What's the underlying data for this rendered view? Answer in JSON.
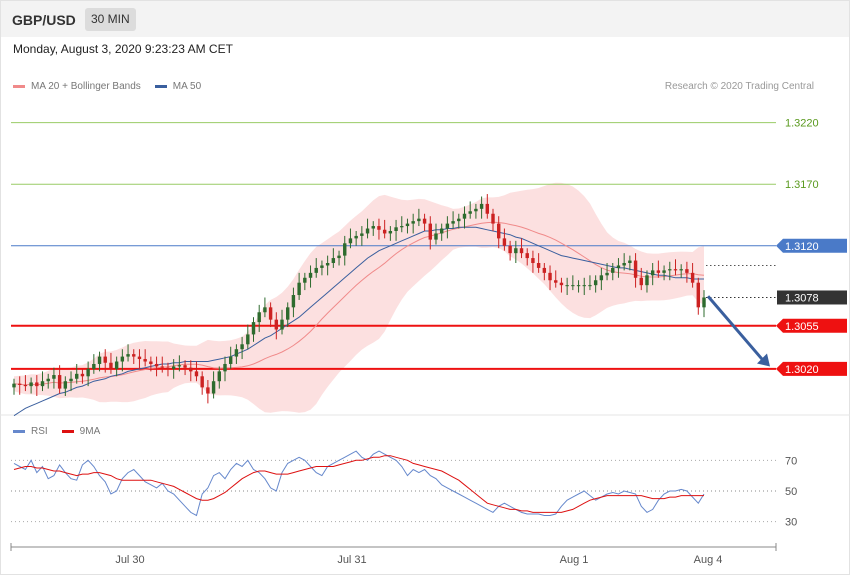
{
  "header": {
    "symbol": "GBP/USD",
    "timeframe": "30 MIN",
    "datetime": "Monday, August 3, 2020 9:23:23 AM CET"
  },
  "legend": {
    "items": [
      {
        "label": "MA 20 + Bollinger Bands",
        "color": "#f08a8a"
      },
      {
        "label": "MA 50",
        "color": "#3a5f9e"
      }
    ],
    "credit": "Research © 2020 Trading Central"
  },
  "rsi_legend": {
    "items": [
      {
        "label": "RSI",
        "color": "#6688cc"
      },
      {
        "label": "9MA",
        "color": "#dd1111"
      }
    ]
  },
  "colors": {
    "up": "#2e6b2e",
    "down": "#cc2222",
    "resistance_green": "#99cc66",
    "pivot_blue": "#4a7ac8",
    "support_red": "#ee1111",
    "bb_fill": "#fbd6d6",
    "ma20": "#f08a8a",
    "ma50": "#3a5f9e",
    "current_label": "#333333",
    "arrow": "#3a5f9e"
  },
  "chart_data": [
    {
      "type": "candlestick",
      "title": "GBP/USD 30 MIN",
      "x_ticks": [
        "Jul 30",
        "Jul 31",
        "Aug 1",
        "Aug 4"
      ],
      "ylim": [
        1.2985,
        1.324
      ],
      "levels": [
        {
          "value": 1.322,
          "label": "1.3220",
          "kind": "resistance"
        },
        {
          "value": 1.317,
          "label": "1.3170",
          "kind": "resistance"
        },
        {
          "value": 1.312,
          "label": "1.3120",
          "kind": "pivot"
        },
        {
          "value": 1.3078,
          "label": "1.3078",
          "kind": "current"
        },
        {
          "value": 1.3055,
          "label": "1.3055",
          "kind": "support"
        },
        {
          "value": 1.302,
          "label": "1.3020",
          "kind": "support"
        }
      ],
      "close": [
        1.3008,
        1.3007,
        1.3006,
        1.3009,
        1.3006,
        1.301,
        1.3012,
        1.3015,
        1.3004,
        1.301,
        1.3012,
        1.3016,
        1.3014,
        1.302,
        1.3024,
        1.303,
        1.3025,
        1.302,
        1.3026,
        1.303,
        1.3032,
        1.303,
        1.3028,
        1.3026,
        1.3024,
        1.3022,
        1.3021,
        1.302,
        1.3022,
        1.3023,
        1.3021,
        1.3018,
        1.3014,
        1.3005,
        1.3,
        1.301,
        1.3018,
        1.3024,
        1.303,
        1.3036,
        1.304,
        1.3048,
        1.3058,
        1.3066,
        1.307,
        1.306,
        1.3052,
        1.306,
        1.307,
        1.308,
        1.309,
        1.3094,
        1.3098,
        1.3102,
        1.3104,
        1.3106,
        1.311,
        1.3112,
        1.3122,
        1.3126,
        1.3128,
        1.313,
        1.3134,
        1.3136,
        1.3133,
        1.313,
        1.3132,
        1.3135,
        1.3136,
        1.3138,
        1.314,
        1.3142,
        1.3138,
        1.3125,
        1.313,
        1.3134,
        1.3138,
        1.314,
        1.3142,
        1.3146,
        1.3148,
        1.315,
        1.3154,
        1.3146,
        1.3138,
        1.3126,
        1.312,
        1.3114,
        1.3118,
        1.3114,
        1.311,
        1.3106,
        1.3102,
        1.3098,
        1.3092,
        1.309,
        1.3088,
        1.3088,
        1.3088,
        1.3088,
        1.3088,
        1.3088,
        1.3092,
        1.3096,
        1.3098,
        1.3102,
        1.3104,
        1.3106,
        1.3108,
        1.3094,
        1.3088,
        1.3096,
        1.31,
        1.3098,
        1.31,
        1.3101,
        1.31,
        1.3101,
        1.3098,
        1.309,
        1.307,
        1.3078
      ],
      "ma50": [
        1.2982,
        1.2985,
        1.2988,
        1.299,
        1.2992,
        1.2994,
        1.2996,
        1.2998,
        1.3,
        1.3001,
        1.3003,
        1.3005,
        1.3006,
        1.3008,
        1.301,
        1.3011,
        1.3012,
        1.3014,
        1.3015,
        1.3016,
        1.3018,
        1.3019,
        1.302,
        1.3021,
        1.3022,
        1.3023,
        1.3024,
        1.3024,
        1.3025,
        1.3025,
        1.3026,
        1.3026,
        1.3026,
        1.3026,
        1.3026,
        1.3027,
        1.3028,
        1.3029,
        1.303,
        1.3032,
        1.3034,
        1.3036,
        1.3039,
        1.3042,
        1.3045,
        1.3047,
        1.305,
        1.3053,
        1.3056,
        1.3059,
        1.3062,
        1.3066,
        1.307,
        1.3074,
        1.3078,
        1.3082,
        1.3086,
        1.309,
        1.3094,
        1.3098,
        1.3102,
        1.3106,
        1.311,
        1.3113,
        1.3116,
        1.3118,
        1.312,
        1.3122,
        1.3124,
        1.3126,
        1.3128,
        1.313,
        1.3132,
        1.3132,
        1.3133,
        1.3133,
        1.3134,
        1.3134,
        1.3135,
        1.3135,
        1.3135,
        1.3135,
        1.3134,
        1.3133,
        1.3132,
        1.3131,
        1.313,
        1.3129,
        1.3127,
        1.3126,
        1.3124,
        1.3122,
        1.312,
        1.3118,
        1.3116,
        1.3114,
        1.3112,
        1.3111,
        1.311,
        1.3109,
        1.3108,
        1.3107,
        1.3106,
        1.3105,
        1.3104,
        1.3103,
        1.3102,
        1.3102,
        1.3101,
        1.31,
        1.3099,
        1.3098,
        1.3097,
        1.3096,
        1.3096,
        1.3095,
        1.3094,
        1.3094,
        1.3094,
        1.3093,
        1.3093,
        1.3093
      ]
    },
    {
      "type": "line",
      "title": "RSI",
      "yticks": [
        70,
        50,
        30
      ],
      "ylim": [
        18,
        80
      ],
      "series": [
        {
          "name": "RSI",
          "values": [
            68,
            66,
            64,
            70,
            62,
            66,
            58,
            60,
            67,
            62,
            58,
            57,
            67,
            70,
            66,
            60,
            56,
            48,
            50,
            58,
            62,
            64,
            60,
            56,
            54,
            52,
            55,
            50,
            48,
            44,
            40,
            36,
            34,
            48,
            52,
            60,
            62,
            58,
            64,
            68,
            66,
            70,
            64,
            62,
            58,
            52,
            50,
            62,
            68,
            70,
            72,
            70,
            66,
            62,
            60,
            66,
            68,
            70,
            72,
            74,
            76,
            72,
            70,
            74,
            76,
            74,
            72,
            70,
            66,
            60,
            64,
            62,
            64,
            60,
            58,
            54,
            52,
            50,
            48,
            46,
            44,
            42,
            40,
            38,
            36,
            40,
            42,
            40,
            38,
            36,
            35,
            35,
            35,
            34,
            34,
            35,
            40,
            44,
            46,
            48,
            50,
            47,
            44,
            46,
            48,
            49,
            48,
            50,
            49,
            48,
            40,
            36,
            38,
            44,
            48,
            50,
            50,
            51,
            50,
            46,
            42,
            48
          ]
        },
        {
          "name": "9MA",
          "values": [
            64,
            65,
            66,
            66,
            65,
            65,
            64,
            63,
            63,
            62,
            61,
            60,
            61,
            61,
            62,
            62,
            61,
            60,
            58,
            57,
            57,
            57,
            57,
            57,
            57,
            56,
            55,
            54,
            53,
            51,
            49,
            47,
            45,
            44,
            44,
            45,
            47,
            49,
            52,
            55,
            58,
            60,
            62,
            63,
            63,
            62,
            61,
            61,
            61,
            62,
            63,
            64,
            65,
            66,
            66,
            66,
            66,
            67,
            68,
            69,
            70,
            70,
            71,
            72,
            72,
            73,
            73,
            72,
            71,
            70,
            68,
            67,
            66,
            65,
            64,
            63,
            61,
            59,
            57,
            54,
            51,
            48,
            45,
            42,
            41,
            40,
            39,
            38,
            38,
            37,
            37,
            36,
            36,
            36,
            36,
            36,
            36,
            37,
            38,
            40,
            42,
            44,
            45,
            46,
            47,
            47,
            47,
            47,
            47,
            47,
            47,
            46,
            45,
            45,
            45,
            46,
            46,
            47,
            47,
            47,
            47,
            47
          ]
        }
      ]
    }
  ]
}
